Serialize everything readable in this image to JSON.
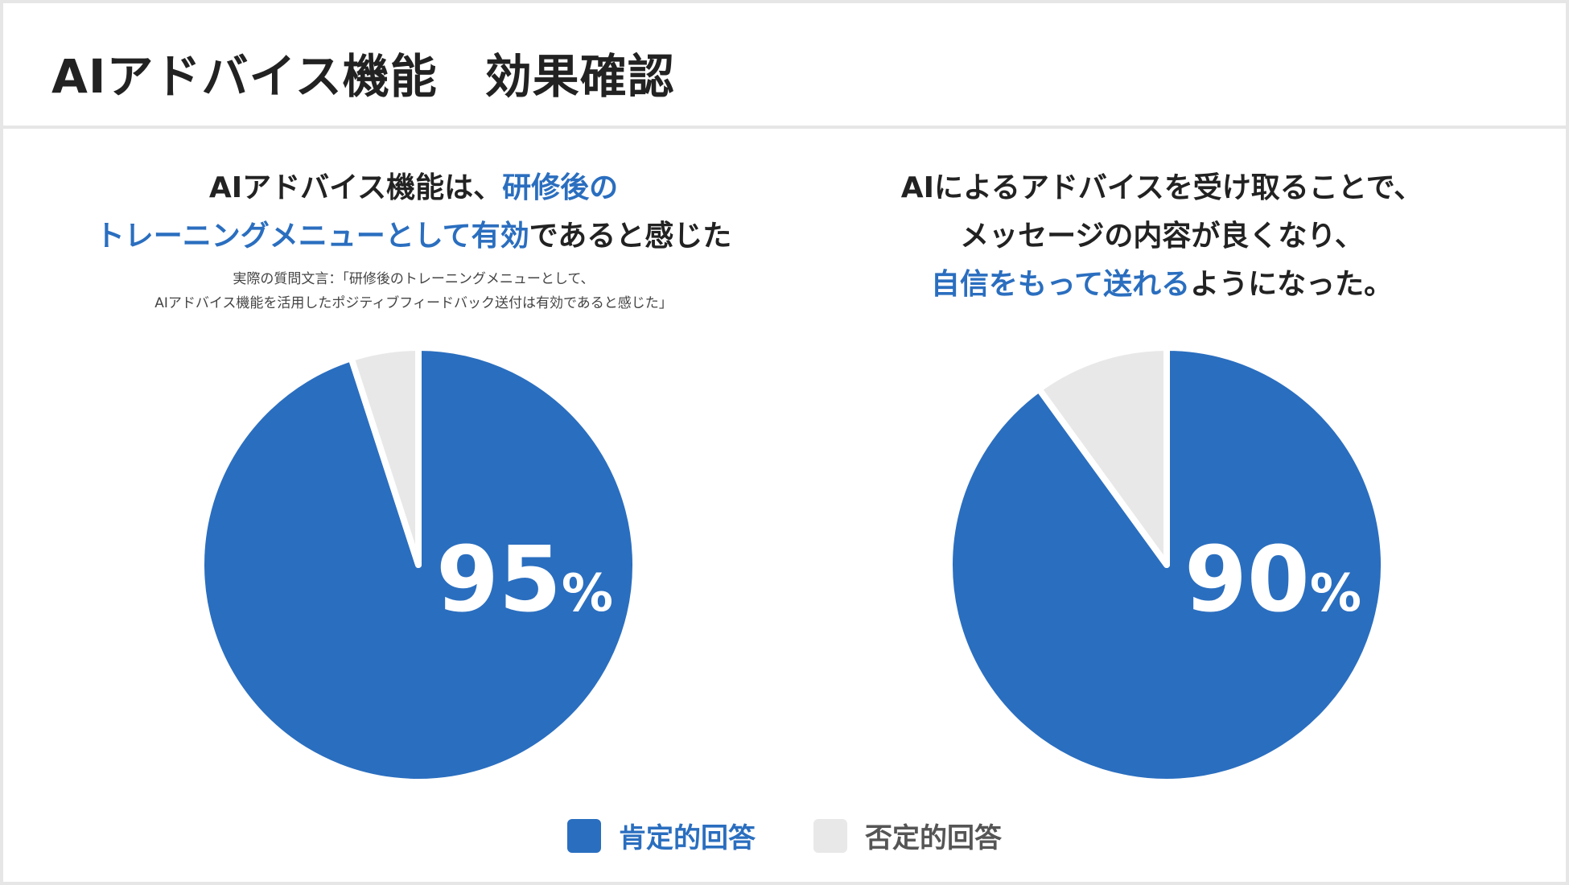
{
  "page": {
    "title": "AIアドバイス機能　効果確認"
  },
  "colors": {
    "positive": "#2a6ebf",
    "negative": "#e8e8e8",
    "text": "#222222",
    "background": "#ffffff"
  },
  "panels": [
    {
      "headline_line1_a": "AIアドバイス機能は、",
      "headline_line1_b": "研修後の",
      "headline_line2_a": "トレーニングメニューとして有効",
      "headline_line2_b": "であると感じた",
      "note_line1": "実際の質問文言：「研修後のトレーニングメニューとして、",
      "note_line2": "AIアドバイス機能を活用したポジティブフィードバック送付は有効であると感じた」",
      "percent_value": "95",
      "percent_sign": "%"
    },
    {
      "headline_line1": "AIによるアドバイスを受け取ることで、",
      "headline_line2": "メッセージの内容が良くなり、",
      "headline_line3_a": "自信をもって送れる",
      "headline_line3_b": "ようになった。",
      "percent_value": "90",
      "percent_sign": "%"
    }
  ],
  "legend": {
    "positive_label": "肯定的回答",
    "negative_label": "否定的回答"
  },
  "chart_data": [
    {
      "type": "pie",
      "categories": [
        "肯定的回答",
        "否定的回答"
      ],
      "values": [
        95,
        5
      ],
      "colors": [
        "#2a6ebf",
        "#e8e8e8"
      ]
    },
    {
      "type": "pie",
      "categories": [
        "肯定的回答",
        "否定的回答"
      ],
      "values": [
        90,
        10
      ],
      "colors": [
        "#2a6ebf",
        "#e8e8e8"
      ]
    }
  ]
}
